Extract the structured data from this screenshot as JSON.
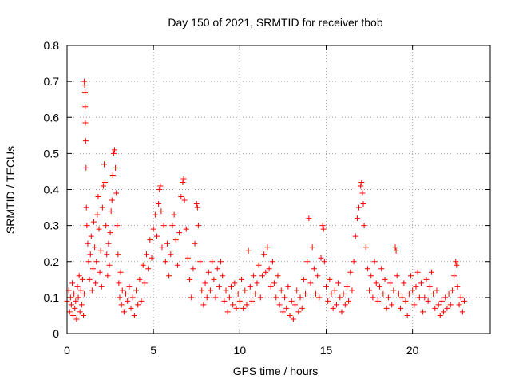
{
  "chart_data": {
    "type": "scatter",
    "title": "Day 150 of 2021, SRMTID for receiver tbob",
    "xlabel": "GPS time / hours",
    "ylabel": "SRMTID / TECUs",
    "xlim": [
      0,
      24.5
    ],
    "ylim": [
      0,
      0.8
    ],
    "x_ticks": [
      0,
      5,
      10,
      15,
      20
    ],
    "y_ticks": [
      0,
      0.1,
      0.2,
      0.3,
      0.4,
      0.5,
      0.6,
      0.7,
      0.8
    ],
    "x_tick_labels": [
      "0",
      "5",
      "10",
      "15",
      "20"
    ],
    "y_tick_labels": [
      "0",
      "0.1",
      "0.2",
      "0.3",
      "0.4",
      "0.5",
      "0.6",
      "0.7",
      "0.8"
    ],
    "grid": true,
    "marker": "plus",
    "color": "#ff0000",
    "series": [
      {
        "name": "SRMTID",
        "points": [
          [
            0.0,
            0.09
          ],
          [
            0.1,
            0.12
          ],
          [
            0.15,
            0.06
          ],
          [
            0.2,
            0.1
          ],
          [
            0.25,
            0.08
          ],
          [
            0.3,
            0.14
          ],
          [
            0.35,
            0.05
          ],
          [
            0.4,
            0.11
          ],
          [
            0.45,
            0.07
          ],
          [
            0.5,
            0.09
          ],
          [
            0.55,
            0.04
          ],
          [
            0.6,
            0.13
          ],
          [
            0.65,
            0.1
          ],
          [
            0.7,
            0.16
          ],
          [
            0.75,
            0.06
          ],
          [
            0.8,
            0.12
          ],
          [
            0.85,
            0.08
          ],
          [
            0.9,
            0.15
          ],
          [
            0.95,
            0.05
          ],
          [
            1.0,
            0.11
          ],
          [
            1.0,
            0.7
          ],
          [
            1.02,
            0.69
          ],
          [
            1.04,
            0.67
          ],
          [
            1.05,
            0.63
          ],
          [
            1.06,
            0.585
          ],
          [
            1.08,
            0.535
          ],
          [
            1.1,
            0.46
          ],
          [
            1.12,
            0.35
          ],
          [
            1.15,
            0.3
          ],
          [
            1.2,
            0.25
          ],
          [
            1.25,
            0.2
          ],
          [
            1.3,
            0.15
          ],
          [
            1.35,
            0.22
          ],
          [
            1.4,
            0.27
          ],
          [
            1.45,
            0.12
          ],
          [
            1.5,
            0.18
          ],
          [
            1.55,
            0.31
          ],
          [
            1.6,
            0.24
          ],
          [
            1.65,
            0.14
          ],
          [
            1.7,
            0.2
          ],
          [
            1.75,
            0.33
          ],
          [
            1.8,
            0.38
          ],
          [
            1.85,
            0.29
          ],
          [
            1.9,
            0.17
          ],
          [
            1.95,
            0.23
          ],
          [
            2.0,
            0.13
          ],
          [
            2.05,
            0.35
          ],
          [
            2.1,
            0.41
          ],
          [
            2.15,
            0.47
          ],
          [
            2.2,
            0.42
          ],
          [
            2.25,
            0.3
          ],
          [
            2.3,
            0.22
          ],
          [
            2.35,
            0.16
          ],
          [
            2.4,
            0.25
          ],
          [
            2.45,
            0.19
          ],
          [
            2.5,
            0.28
          ],
          [
            2.55,
            0.34
          ],
          [
            2.6,
            0.37
          ],
          [
            2.65,
            0.44
          ],
          [
            2.7,
            0.5
          ],
          [
            2.75,
            0.51
          ],
          [
            2.8,
            0.46
          ],
          [
            2.85,
            0.39
          ],
          [
            2.9,
            0.3
          ],
          [
            2.95,
            0.22
          ],
          [
            3.0,
            0.14
          ],
          [
            3.05,
            0.1
          ],
          [
            3.1,
            0.17
          ],
          [
            3.15,
            0.08
          ],
          [
            3.2,
            0.12
          ],
          [
            3.3,
            0.06
          ],
          [
            3.4,
            0.11
          ],
          [
            3.5,
            0.09
          ],
          [
            3.6,
            0.13
          ],
          [
            3.7,
            0.07
          ],
          [
            3.8,
            0.1
          ],
          [
            3.9,
            0.05
          ],
          [
            4.0,
            0.12
          ],
          [
            4.1,
            0.08
          ],
          [
            4.2,
            0.15
          ],
          [
            4.3,
            0.09
          ],
          [
            4.4,
            0.19
          ],
          [
            4.5,
            0.14
          ],
          [
            4.6,
            0.22
          ],
          [
            4.7,
            0.18
          ],
          [
            4.8,
            0.26
          ],
          [
            4.9,
            0.21
          ],
          [
            5.0,
            0.29
          ],
          [
            5.1,
            0.33
          ],
          [
            5.2,
            0.27
          ],
          [
            5.3,
            0.36
          ],
          [
            5.35,
            0.4
          ],
          [
            5.4,
            0.41
          ],
          [
            5.45,
            0.34
          ],
          [
            5.5,
            0.24
          ],
          [
            5.6,
            0.3
          ],
          [
            5.7,
            0.2
          ],
          [
            5.8,
            0.25
          ],
          [
            5.9,
            0.16
          ],
          [
            6.0,
            0.22
          ],
          [
            6.1,
            0.3
          ],
          [
            6.2,
            0.33
          ],
          [
            6.3,
            0.26
          ],
          [
            6.4,
            0.19
          ],
          [
            6.5,
            0.28
          ],
          [
            6.6,
            0.38
          ],
          [
            6.7,
            0.42
          ],
          [
            6.75,
            0.43
          ],
          [
            6.8,
            0.37
          ],
          [
            6.9,
            0.29
          ],
          [
            7.0,
            0.21
          ],
          [
            7.1,
            0.15
          ],
          [
            7.2,
            0.1
          ],
          [
            7.3,
            0.18
          ],
          [
            7.4,
            0.25
          ],
          [
            7.5,
            0.36
          ],
          [
            7.55,
            0.35
          ],
          [
            7.6,
            0.3
          ],
          [
            7.7,
            0.2
          ],
          [
            7.8,
            0.12
          ],
          [
            7.9,
            0.08
          ],
          [
            8.0,
            0.14
          ],
          [
            8.1,
            0.1
          ],
          [
            8.2,
            0.17
          ],
          [
            8.3,
            0.12
          ],
          [
            8.4,
            0.2
          ],
          [
            8.5,
            0.15
          ],
          [
            8.6,
            0.1
          ],
          [
            8.7,
            0.18
          ],
          [
            8.8,
            0.13
          ],
          [
            8.9,
            0.2
          ],
          [
            9.0,
            0.16
          ],
          [
            9.1,
            0.09
          ],
          [
            9.2,
            0.12
          ],
          [
            9.3,
            0.06
          ],
          [
            9.4,
            0.1
          ],
          [
            9.5,
            0.13
          ],
          [
            9.6,
            0.08
          ],
          [
            9.7,
            0.14
          ],
          [
            9.8,
            0.07
          ],
          [
            9.9,
            0.11
          ],
          [
            10.0,
            0.09
          ],
          [
            10.1,
            0.15
          ],
          [
            10.2,
            0.07
          ],
          [
            10.3,
            0.12
          ],
          [
            10.4,
            0.08
          ],
          [
            10.5,
            0.23
          ],
          [
            10.6,
            0.13
          ],
          [
            10.7,
            0.09
          ],
          [
            10.8,
            0.16
          ],
          [
            10.9,
            0.11
          ],
          [
            11.0,
            0.14
          ],
          [
            11.1,
            0.19
          ],
          [
            11.2,
            0.1
          ],
          [
            11.3,
            0.16
          ],
          [
            11.4,
            0.22
          ],
          [
            11.5,
            0.17
          ],
          [
            11.6,
            0.24
          ],
          [
            11.7,
            0.18
          ],
          [
            11.8,
            0.13
          ],
          [
            11.9,
            0.2
          ],
          [
            12.0,
            0.14
          ],
          [
            12.1,
            0.1
          ],
          [
            12.2,
            0.16
          ],
          [
            12.3,
            0.08
          ],
          [
            12.4,
            0.12
          ],
          [
            12.5,
            0.06
          ],
          [
            12.6,
            0.1
          ],
          [
            12.7,
            0.07
          ],
          [
            12.8,
            0.13
          ],
          [
            12.9,
            0.05
          ],
          [
            13.0,
            0.09
          ],
          [
            13.1,
            0.04
          ],
          [
            13.2,
            0.08
          ],
          [
            13.3,
            0.12
          ],
          [
            13.4,
            0.06
          ],
          [
            13.5,
            0.1
          ],
          [
            13.6,
            0.07
          ],
          [
            13.7,
            0.15
          ],
          [
            13.8,
            0.11
          ],
          [
            13.9,
            0.2
          ],
          [
            14.0,
            0.32
          ],
          [
            14.1,
            0.14
          ],
          [
            14.2,
            0.24
          ],
          [
            14.3,
            0.18
          ],
          [
            14.4,
            0.11
          ],
          [
            14.5,
            0.16
          ],
          [
            14.6,
            0.1
          ],
          [
            14.7,
            0.21
          ],
          [
            14.8,
            0.3
          ],
          [
            14.85,
            0.29
          ],
          [
            14.9,
            0.2
          ],
          [
            15.0,
            0.13
          ],
          [
            15.1,
            0.09
          ],
          [
            15.2,
            0.15
          ],
          [
            15.3,
            0.11
          ],
          [
            15.4,
            0.07
          ],
          [
            15.5,
            0.12
          ],
          [
            15.6,
            0.08
          ],
          [
            15.7,
            0.14
          ],
          [
            15.8,
            0.1
          ],
          [
            15.9,
            0.06
          ],
          [
            16.0,
            0.11
          ],
          [
            16.1,
            0.08
          ],
          [
            16.2,
            0.13
          ],
          [
            16.3,
            0.09
          ],
          [
            16.4,
            0.17
          ],
          [
            16.5,
            0.12
          ],
          [
            16.6,
            0.2
          ],
          [
            16.7,
            0.27
          ],
          [
            16.8,
            0.32
          ],
          [
            16.9,
            0.35
          ],
          [
            17.0,
            0.41
          ],
          [
            17.05,
            0.42
          ],
          [
            17.1,
            0.39
          ],
          [
            17.15,
            0.36
          ],
          [
            17.2,
            0.3
          ],
          [
            17.3,
            0.24
          ],
          [
            17.4,
            0.18
          ],
          [
            17.5,
            0.12
          ],
          [
            17.6,
            0.16
          ],
          [
            17.7,
            0.1
          ],
          [
            17.8,
            0.2
          ],
          [
            17.9,
            0.14
          ],
          [
            18.0,
            0.09
          ],
          [
            18.1,
            0.13
          ],
          [
            18.2,
            0.18
          ],
          [
            18.3,
            0.11
          ],
          [
            18.4,
            0.15
          ],
          [
            18.5,
            0.07
          ],
          [
            18.6,
            0.1
          ],
          [
            18.7,
            0.14
          ],
          [
            18.8,
            0.08
          ],
          [
            18.9,
            0.12
          ],
          [
            19.0,
            0.24
          ],
          [
            19.05,
            0.23
          ],
          [
            19.1,
            0.16
          ],
          [
            19.2,
            0.11
          ],
          [
            19.3,
            0.07
          ],
          [
            19.4,
            0.1
          ],
          [
            19.5,
            0.14
          ],
          [
            19.6,
            0.09
          ],
          [
            19.7,
            0.05
          ],
          [
            19.8,
            0.11
          ],
          [
            19.9,
            0.16
          ],
          [
            20.0,
            0.12
          ],
          [
            20.1,
            0.08
          ],
          [
            20.2,
            0.13
          ],
          [
            20.3,
            0.17
          ],
          [
            20.4,
            0.1
          ],
          [
            20.5,
            0.14
          ],
          [
            20.6,
            0.06
          ],
          [
            20.7,
            0.1
          ],
          [
            20.8,
            0.15
          ],
          [
            20.9,
            0.09
          ],
          [
            21.0,
            0.13
          ],
          [
            21.1,
            0.17
          ],
          [
            21.2,
            0.11
          ],
          [
            21.3,
            0.07
          ],
          [
            21.4,
            0.12
          ],
          [
            21.5,
            0.08
          ],
          [
            21.6,
            0.05
          ],
          [
            21.7,
            0.09
          ],
          [
            21.8,
            0.06
          ],
          [
            21.9,
            0.1
          ],
          [
            22.0,
            0.07
          ],
          [
            22.1,
            0.11
          ],
          [
            22.2,
            0.08
          ],
          [
            22.3,
            0.12
          ],
          [
            22.4,
            0.16
          ],
          [
            22.5,
            0.2
          ],
          [
            22.55,
            0.19
          ],
          [
            22.6,
            0.13
          ],
          [
            22.7,
            0.08
          ],
          [
            22.8,
            0.1
          ],
          [
            22.9,
            0.06
          ],
          [
            23.0,
            0.09
          ]
        ]
      }
    ]
  }
}
